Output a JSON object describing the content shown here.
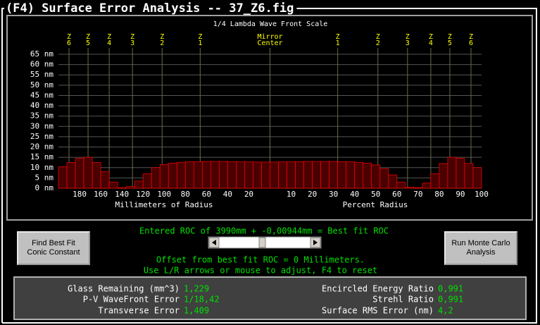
{
  "window_title": "(F4) Surface Error Analysis -- 37_Z6.fig",
  "chart_data": {
    "type": "bar",
    "subtitle": "1/4 Lambda Wave Front Scale",
    "x_label_left": "Millimeters of Radius",
    "x_label_right": "Percent Radius",
    "x": [
      -98,
      -94,
      -90,
      -86,
      -82,
      -78,
      -74,
      -70,
      -66,
      -62,
      -58,
      -54,
      -50,
      -46,
      -42,
      -38,
      -34,
      -30,
      -26,
      -22,
      -18,
      -14,
      -10,
      -6,
      -2,
      2,
      6,
      10,
      14,
      18,
      22,
      26,
      30,
      34,
      38,
      42,
      46,
      50,
      54,
      58,
      62,
      66,
      70,
      74,
      78,
      82,
      86,
      90,
      94,
      98
    ],
    "values": [
      10.5,
      12.5,
      14.5,
      15,
      12.5,
      8,
      3,
      0.3,
      0.8,
      3.5,
      7,
      10,
      11.5,
      12.2,
      12.6,
      12.8,
      12.9,
      13,
      13,
      13,
      12.9,
      12.8,
      12.8,
      12.7,
      12.7,
      12.7,
      12.8,
      12.8,
      12.9,
      13,
      13,
      13,
      13,
      12.9,
      12.8,
      12.6,
      12.2,
      11.3,
      9.5,
      6.5,
      3,
      0.5,
      0.3,
      2.5,
      7,
      12,
      15,
      14.5,
      12,
      10
    ],
    "color": "#ff0000",
    "xlim": [
      -100,
      100
    ],
    "xticks": [
      {
        "value": -90,
        "label": "180"
      },
      {
        "value": -80,
        "label": "160"
      },
      {
        "value": -70,
        "label": "140"
      },
      {
        "value": -60,
        "label": "120"
      },
      {
        "value": -50,
        "label": "100"
      },
      {
        "value": -40,
        "label": "80"
      },
      {
        "value": -30,
        "label": "60"
      },
      {
        "value": -20,
        "label": "40"
      },
      {
        "value": -10,
        "label": "20"
      },
      10,
      20,
      30,
      40,
      50,
      60,
      70,
      80,
      90,
      100
    ],
    "ylim": [
      0,
      65
    ],
    "yticks": [
      {
        "value": 0,
        "label": "0 nm"
      },
      {
        "value": 5,
        "label": "5 nm"
      },
      {
        "value": 10,
        "label": "10 nm"
      },
      {
        "value": 15,
        "label": "15 nm"
      },
      {
        "value": 20,
        "label": "20 nm"
      },
      {
        "value": 25,
        "label": "25 nm"
      },
      {
        "value": 30,
        "label": "30 nm"
      },
      {
        "value": 35,
        "label": "35 nm"
      },
      {
        "value": 40,
        "label": "40 nm"
      },
      {
        "value": 45,
        "label": "45 nm"
      },
      {
        "value": 50,
        "label": "50 nm"
      },
      {
        "value": 55,
        "label": "55 nm"
      },
      {
        "value": 60,
        "label": "60 nm"
      },
      {
        "value": 65,
        "label": "65 nm"
      }
    ],
    "grid": true,
    "zones": [
      {
        "name": "Z",
        "number": 6,
        "x": -95
      },
      {
        "name": "Z",
        "number": 5,
        "x": -86
      },
      {
        "name": "Z",
        "number": 4,
        "x": -76
      },
      {
        "name": "Z",
        "number": 3,
        "x": -65
      },
      {
        "name": "Z",
        "number": 2,
        "x": -51
      },
      {
        "name": "Z",
        "number": 1,
        "x": -33
      },
      {
        "name": "Z",
        "number": 1,
        "x": 32
      },
      {
        "name": "Z",
        "number": 2,
        "x": 51
      },
      {
        "name": "Z",
        "number": 3,
        "x": 65
      },
      {
        "name": "Z",
        "number": 4,
        "x": 76
      },
      {
        "name": "Z",
        "number": 5,
        "x": 85
      },
      {
        "name": "Z",
        "number": 6,
        "x": 95
      }
    ],
    "center_marker": {
      "lines": [
        "Mirror",
        "Center"
      ],
      "x": 0
    }
  },
  "controls": {
    "roc_text": "Entered ROC of 3990mm + -0,00944mm = Best fit ROC",
    "offset_text": "Offset from best fit ROC = 0 Millimeters.",
    "help_text": "Use L/R arrows or mouse to adjust, F4 to reset",
    "buttons": [
      "Find Best Fit Conic Constant",
      "Run Monte Carlo Analysis"
    ]
  },
  "results": {
    "left": [
      {
        "label": "Glass Remaining (mm^3)",
        "value": "1,229"
      },
      {
        "label": "P-V WaveFront Error",
        "value": "1/18,42"
      },
      {
        "label": "Transverse Error",
        "value": "1,409"
      }
    ],
    "right": [
      {
        "label": "Encircled Energy Ratio",
        "value": "0,991"
      },
      {
        "label": "Strehl Ratio",
        "value": "0,991"
      },
      {
        "label": "Surface RMS Error (nm)",
        "value": "4,2"
      }
    ]
  }
}
